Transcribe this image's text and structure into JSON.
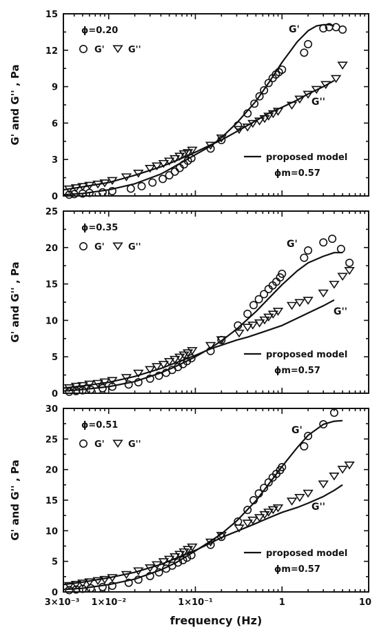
{
  "chart_data": [
    {
      "type": "scatter",
      "ylabel": "G' and G'' , Pa",
      "xlabel": "",
      "x_scale": "log",
      "xlim": [
        0.003,
        10
      ],
      "ylim": [
        0,
        15
      ],
      "yticks": [
        "0",
        "3",
        "6",
        "9",
        "12",
        "15"
      ],
      "legend": {
        "phi_label": "ϕ=0.20",
        "gp_label": "G'",
        "gpp_label": "G''",
        "position": "top-left"
      },
      "model_legend": {
        "label": "proposed model",
        "phi_m": "ϕm=0.57",
        "position": "bottom-right"
      },
      "curve_labels": {
        "gp": "G'",
        "gpp": "G''"
      },
      "series": [
        {
          "name": "G'",
          "marker": "circle",
          "x": [
            0.0035,
            0.004,
            0.005,
            0.006,
            0.0085,
            0.011,
            0.018,
            0.024,
            0.032,
            0.042,
            0.05,
            0.058,
            0.066,
            0.074,
            0.082,
            0.09,
            0.15,
            0.2,
            0.31,
            0.4,
            0.48,
            0.55,
            0.62,
            0.7,
            0.78,
            0.85,
            0.92,
            1.0,
            1.8,
            2.0,
            3.0,
            3.5,
            4.2,
            5.0
          ],
          "y": [
            0.1,
            0.15,
            0.2,
            0.25,
            0.3,
            0.4,
            0.6,
            0.8,
            1.1,
            1.4,
            1.7,
            2.0,
            2.3,
            2.6,
            2.9,
            3.1,
            3.9,
            4.6,
            5.8,
            6.8,
            7.6,
            8.2,
            8.7,
            9.3,
            9.7,
            10.0,
            10.2,
            10.4,
            11.8,
            12.5,
            13.8,
            13.9,
            13.9,
            13.7
          ]
        },
        {
          "name": "G''",
          "marker": "triangle-down",
          "x": [
            0.0035,
            0.0042,
            0.005,
            0.006,
            0.0075,
            0.009,
            0.011,
            0.016,
            0.022,
            0.03,
            0.036,
            0.043,
            0.05,
            0.058,
            0.066,
            0.074,
            0.082,
            0.092,
            0.15,
            0.2,
            0.32,
            0.4,
            0.46,
            0.55,
            0.63,
            0.7,
            0.79,
            0.9,
            1.3,
            1.6,
            2.0,
            2.5,
            3.2,
            4.2,
            5.0
          ],
          "y": [
            0.6,
            0.7,
            0.8,
            0.9,
            1.0,
            1.1,
            1.3,
            1.6,
            1.9,
            2.3,
            2.5,
            2.7,
            2.9,
            3.1,
            3.3,
            3.5,
            3.6,
            3.8,
            4.2,
            4.8,
            5.5,
            5.7,
            6.0,
            6.2,
            6.4,
            6.6,
            6.8,
            7.0,
            7.5,
            8.0,
            8.4,
            8.8,
            9.2,
            9.7,
            10.8
          ]
        }
      ],
      "model": {
        "gp": {
          "x": [
            0.003,
            0.005,
            0.01,
            0.02,
            0.04,
            0.06,
            0.1,
            0.15,
            0.2,
            0.3,
            0.5,
            0.7,
            1.0,
            1.5,
            2.0,
            2.5,
            3.0,
            3.5,
            4.0
          ],
          "y": [
            0.1,
            0.2,
            0.5,
            1.0,
            1.8,
            2.5,
            3.4,
            4.1,
            4.8,
            6.0,
            7.8,
            9.3,
            11.0,
            12.7,
            13.6,
            14.0,
            14.1,
            14.1,
            14.0
          ]
        },
        "gpp": {
          "x": [
            0.003,
            0.005,
            0.01,
            0.02,
            0.04,
            0.06,
            0.1,
            0.15,
            0.2,
            0.3,
            0.5,
            0.7,
            1.0,
            1.5,
            2.0,
            3.0,
            4.0
          ],
          "y": [
            0.5,
            0.75,
            1.1,
            1.7,
            2.4,
            2.9,
            3.6,
            4.2,
            4.6,
            5.3,
            6.2,
            6.8,
            7.3,
            7.9,
            8.4,
            9.0,
            9.5
          ]
        }
      }
    },
    {
      "type": "scatter",
      "ylabel": "G' and G'' , Pa",
      "xlabel": "",
      "x_scale": "log",
      "xlim": [
        0.003,
        10
      ],
      "ylim": [
        0,
        25
      ],
      "yticks": [
        "0",
        "5",
        "10",
        "15",
        "20",
        "25"
      ],
      "legend": {
        "phi_label": "ϕ=0.35",
        "gp_label": "G'",
        "gpp_label": "G''",
        "position": "top-left"
      },
      "model_legend": {
        "label": "proposed model",
        "phi_m": "ϕm=0.57",
        "position": "bottom-right"
      },
      "curve_labels": {
        "gp": "G'",
        "gpp": "G''"
      },
      "series": [
        {
          "name": "G'",
          "marker": "circle",
          "x": [
            0.0035,
            0.0042,
            0.005,
            0.0062,
            0.0085,
            0.011,
            0.017,
            0.022,
            0.03,
            0.038,
            0.046,
            0.054,
            0.063,
            0.072,
            0.08,
            0.09,
            0.15,
            0.2,
            0.31,
            0.4,
            0.47,
            0.54,
            0.62,
            0.7,
            0.78,
            0.86,
            0.95,
            1.0,
            1.8,
            2.0,
            3.0,
            3.8,
            4.8,
            6.0
          ],
          "y": [
            0.2,
            0.3,
            0.4,
            0.5,
            0.7,
            0.9,
            1.2,
            1.5,
            2.0,
            2.4,
            2.8,
            3.2,
            3.6,
            4.0,
            4.4,
            4.8,
            5.8,
            7.3,
            9.3,
            10.9,
            12.1,
            12.9,
            13.6,
            14.3,
            14.8,
            15.3,
            15.9,
            16.4,
            18.6,
            19.6,
            20.7,
            21.2,
            19.8,
            17.9
          ]
        },
        {
          "name": "G''",
          "marker": "triangle-down",
          "x": [
            0.0035,
            0.0042,
            0.005,
            0.006,
            0.0075,
            0.009,
            0.011,
            0.016,
            0.022,
            0.03,
            0.036,
            0.043,
            0.05,
            0.058,
            0.066,
            0.074,
            0.082,
            0.092,
            0.15,
            0.2,
            0.32,
            0.4,
            0.46,
            0.55,
            0.63,
            0.7,
            0.79,
            0.9,
            1.3,
            1.6,
            2.0,
            3.0,
            4.0,
            5.0,
            6.0
          ],
          "y": [
            0.8,
            1.0,
            1.1,
            1.3,
            1.4,
            1.6,
            1.8,
            2.2,
            2.8,
            3.3,
            3.7,
            4.0,
            4.4,
            4.7,
            5.0,
            5.3,
            5.6,
            5.9,
            6.6,
            7.4,
            8.3,
            9.1,
            9.4,
            9.7,
            10.1,
            10.5,
            10.9,
            11.3,
            12.1,
            12.5,
            12.8,
            13.8,
            15.0,
            16.1,
            16.9
          ]
        }
      ],
      "model": {
        "gp": {
          "x": [
            0.003,
            0.005,
            0.01,
            0.02,
            0.04,
            0.06,
            0.1,
            0.15,
            0.2,
            0.3,
            0.5,
            0.7,
            1.0,
            1.5,
            2.0,
            3.0,
            4.0,
            5.0
          ],
          "y": [
            0.3,
            0.5,
            0.9,
            1.6,
            2.8,
            3.7,
            5.0,
            6.2,
            7.2,
            8.8,
            11.2,
            13.0,
            14.9,
            16.8,
            17.9,
            18.8,
            19.3,
            19.3
          ]
        },
        "gpp": {
          "x": [
            0.003,
            0.005,
            0.01,
            0.02,
            0.04,
            0.06,
            0.1,
            0.15,
            0.2,
            0.3,
            0.4,
            0.6,
            1.0,
            1.5,
            2.0,
            3.0,
            4.0
          ],
          "y": [
            0.7,
            1.0,
            1.5,
            2.3,
            3.4,
            4.2,
            5.2,
            6.1,
            6.6,
            7.3,
            7.7,
            8.4,
            9.3,
            10.3,
            11.0,
            12.0,
            12.8
          ]
        }
      }
    },
    {
      "type": "scatter",
      "ylabel": "G' and G'' , Pa",
      "xlabel": "frequency (Hz)",
      "x_scale": "log",
      "xlim": [
        0.003,
        10
      ],
      "ylim": [
        0,
        30
      ],
      "yticks": [
        "0",
        "5",
        "10",
        "15",
        "20",
        "25",
        "30"
      ],
      "xticks": [
        {
          "value": 0.003,
          "label": "3×10⁻³"
        },
        {
          "value": 0.01,
          "label": "1×10⁻²"
        },
        {
          "value": 0.1,
          "label": "1×10⁻¹"
        },
        {
          "value": 1,
          "label": "1"
        },
        {
          "value": 10,
          "label": "10"
        }
      ],
      "legend": {
        "phi_label": "ϕ=0.51",
        "gp_label": "G'",
        "gpp_label": "G''",
        "position": "top-left"
      },
      "model_legend": {
        "label": "proposed model",
        "phi_m": "ϕm=0.57",
        "position": "bottom-right"
      },
      "curve_labels": {
        "gp": "G'",
        "gpp": "G''"
      },
      "series": [
        {
          "name": "G'",
          "marker": "circle",
          "x": [
            0.0035,
            0.0042,
            0.005,
            0.0062,
            0.0085,
            0.011,
            0.017,
            0.022,
            0.03,
            0.038,
            0.046,
            0.054,
            0.063,
            0.072,
            0.08,
            0.09,
            0.15,
            0.2,
            0.31,
            0.4,
            0.47,
            0.54,
            0.62,
            0.7,
            0.78,
            0.86,
            0.95,
            1.0,
            1.8,
            2.0,
            3.0,
            4.0
          ],
          "y": [
            0.3,
            0.4,
            0.5,
            0.6,
            0.8,
            1.0,
            1.5,
            2.0,
            2.6,
            3.2,
            3.8,
            4.3,
            4.8,
            5.2,
            5.6,
            6.0,
            7.7,
            9.0,
            11.5,
            13.4,
            15.0,
            16.1,
            17.0,
            17.9,
            18.7,
            19.3,
            19.9,
            20.4,
            23.8,
            25.5,
            27.4,
            29.3
          ]
        },
        {
          "name": "G''",
          "marker": "triangle-down",
          "x": [
            0.0035,
            0.0042,
            0.005,
            0.006,
            0.0075,
            0.009,
            0.011,
            0.016,
            0.022,
            0.03,
            0.036,
            0.043,
            0.05,
            0.058,
            0.066,
            0.074,
            0.082,
            0.092,
            0.15,
            0.2,
            0.32,
            0.4,
            0.46,
            0.55,
            0.63,
            0.7,
            0.79,
            0.9,
            1.3,
            1.6,
            2.0,
            3.0,
            4.0,
            5.0,
            6.0
          ],
          "y": [
            1.1,
            1.3,
            1.5,
            1.7,
            1.9,
            2.1,
            2.4,
            2.9,
            3.5,
            4.0,
            4.5,
            5.0,
            5.4,
            5.8,
            6.2,
            6.6,
            7.0,
            7.4,
            8.2,
            9.3,
            10.5,
            11.3,
            11.8,
            12.2,
            12.7,
            13.1,
            13.5,
            13.8,
            14.9,
            15.5,
            16.2,
            17.7,
            19.0,
            20.1,
            20.8
          ]
        }
      ],
      "model": {
        "gp": {
          "x": [
            0.003,
            0.005,
            0.01,
            0.02,
            0.04,
            0.06,
            0.1,
            0.15,
            0.2,
            0.3,
            0.5,
            0.7,
            1.0,
            1.5,
            2.0,
            3.0,
            4.0,
            5.0
          ],
          "y": [
            0.4,
            0.6,
            1.2,
            2.1,
            3.6,
            4.8,
            6.7,
            8.3,
            9.5,
            11.6,
            14.9,
            17.6,
            20.5,
            23.6,
            25.6,
            27.4,
            27.9,
            28.0
          ]
        },
        "gpp": {
          "x": [
            0.003,
            0.005,
            0.01,
            0.02,
            0.04,
            0.06,
            0.1,
            0.15,
            0.2,
            0.3,
            0.5,
            0.7,
            1.0,
            1.5,
            2.0,
            3.0,
            4.0,
            5.0
          ],
          "y": [
            1.2,
            1.6,
            2.3,
            3.2,
            4.5,
            5.5,
            6.8,
            8.0,
            8.9,
            9.9,
            11.2,
            12.1,
            13.0,
            13.8,
            14.5,
            15.6,
            16.6,
            17.5
          ]
        }
      }
    }
  ]
}
